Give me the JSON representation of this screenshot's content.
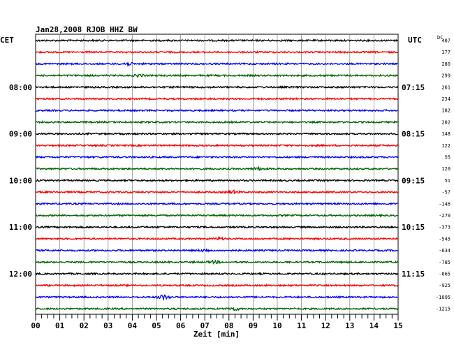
{
  "chart_data": {
    "type": "line",
    "title": "Jan28,2008   RJOB HHZ BW",
    "left_timezone": "CET",
    "right_timezone": "UTC",
    "dc_header": "DC",
    "xlabel": "Zeit [min]",
    "x_ticks": [
      "00",
      "01",
      "02",
      "03",
      "04",
      "05",
      "06",
      "07",
      "08",
      "09",
      "10",
      "11",
      "12",
      "13",
      "14",
      "15"
    ],
    "xlim": [
      0,
      15
    ],
    "grid": true,
    "trace_colors": [
      "#000000",
      "#ff0000",
      "#0000ff",
      "#006400"
    ],
    "left_hour_labels": [
      {
        "trace": 4,
        "label": "08:00"
      },
      {
        "trace": 8,
        "label": "09:00"
      },
      {
        "trace": 12,
        "label": "10:00"
      },
      {
        "trace": 16,
        "label": "11:00"
      },
      {
        "trace": 20,
        "label": "12:00"
      }
    ],
    "right_hour_labels": [
      {
        "trace": 4,
        "label": "07:15"
      },
      {
        "trace": 8,
        "label": "08:15"
      },
      {
        "trace": 12,
        "label": "09:15"
      },
      {
        "trace": 16,
        "label": "10:15"
      },
      {
        "trace": 20,
        "label": "11:15"
      }
    ],
    "dc_offsets": [
      "407",
      "377",
      "280",
      "299",
      "261",
      "234",
      "182",
      "202",
      "148",
      "122",
      "55",
      "120",
      "51",
      "-57",
      "-146",
      "-270",
      "-373",
      "-545",
      "-634",
      "-785",
      "-865",
      "-925",
      "-1095",
      "-1215"
    ],
    "events": [
      {
        "trace": 2,
        "minute": 3.8,
        "amplitude": 1.8
      },
      {
        "trace": 3,
        "minute": 4.3,
        "amplitude": 1.5
      },
      {
        "trace": 11,
        "minute": 9.2,
        "amplitude": 1.6
      },
      {
        "trace": 13,
        "minute": 8.2,
        "amplitude": 1.8
      },
      {
        "trace": 17,
        "minute": 7.6,
        "amplitude": 1.3
      },
      {
        "trace": 18,
        "minute": 7.0,
        "amplitude": 1.3
      },
      {
        "trace": 19,
        "minute": 7.4,
        "amplitude": 1.6
      },
      {
        "trace": 22,
        "minute": 5.3,
        "amplitude": 3.2
      },
      {
        "trace": 23,
        "minute": 8.2,
        "amplitude": 2.0
      }
    ]
  }
}
